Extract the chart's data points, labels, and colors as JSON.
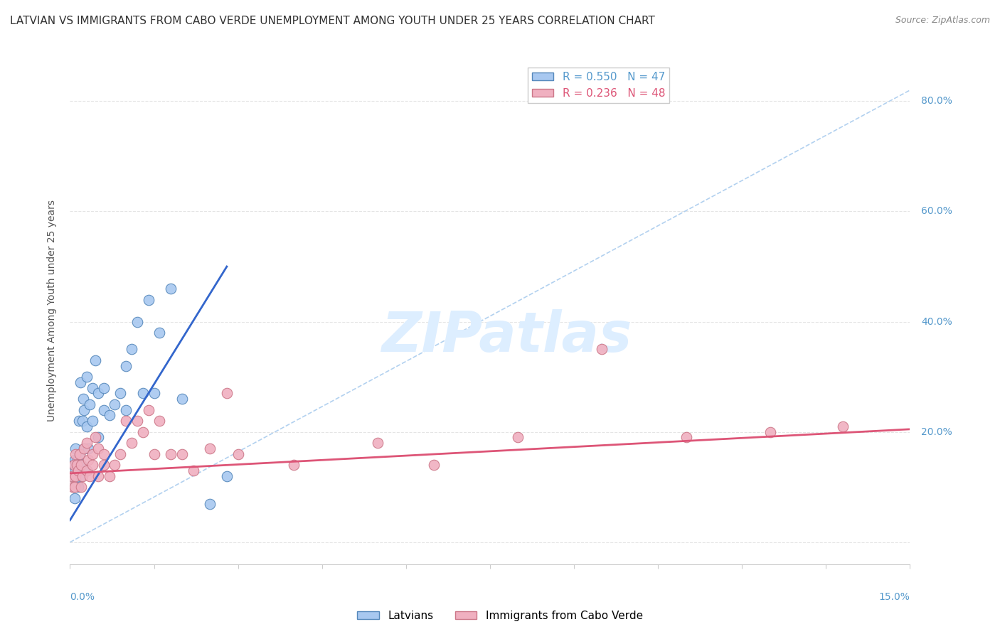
{
  "title": "LATVIAN VS IMMIGRANTS FROM CABO VERDE UNEMPLOYMENT AMONG YOUTH UNDER 25 YEARS CORRELATION CHART",
  "source": "Source: ZipAtlas.com",
  "ylabel": "Unemployment Among Youth under 25 years",
  "xmin": 0.0,
  "xmax": 0.15,
  "ymin": -0.04,
  "ymax": 0.88,
  "ytick_vals": [
    0.0,
    0.2,
    0.4,
    0.6,
    0.8
  ],
  "ytick_labels": [
    "",
    "20.0%",
    "40.0%",
    "60.0%",
    "80.0%"
  ],
  "latvians_x": [
    0.0005,
    0.0006,
    0.0007,
    0.0008,
    0.0008,
    0.001,
    0.001,
    0.0012,
    0.0013,
    0.0015,
    0.0015,
    0.0016,
    0.0017,
    0.0018,
    0.002,
    0.002,
    0.0022,
    0.0023,
    0.0025,
    0.0025,
    0.003,
    0.003,
    0.003,
    0.0032,
    0.0035,
    0.004,
    0.004,
    0.0045,
    0.005,
    0.005,
    0.006,
    0.006,
    0.007,
    0.008,
    0.009,
    0.01,
    0.01,
    0.011,
    0.012,
    0.013,
    0.014,
    0.015,
    0.016,
    0.018,
    0.02,
    0.025,
    0.028
  ],
  "latvians_y": [
    0.12,
    0.14,
    0.1,
    0.08,
    0.15,
    0.13,
    0.17,
    0.11,
    0.15,
    0.1,
    0.14,
    0.22,
    0.16,
    0.29,
    0.12,
    0.14,
    0.22,
    0.26,
    0.17,
    0.24,
    0.13,
    0.21,
    0.3,
    0.17,
    0.25,
    0.22,
    0.28,
    0.33,
    0.19,
    0.27,
    0.24,
    0.28,
    0.23,
    0.25,
    0.27,
    0.24,
    0.32,
    0.35,
    0.4,
    0.27,
    0.44,
    0.27,
    0.38,
    0.46,
    0.26,
    0.07,
    0.12
  ],
  "cabo_verde_x": [
    0.0003,
    0.0005,
    0.0007,
    0.0008,
    0.001,
    0.001,
    0.0012,
    0.0015,
    0.0017,
    0.002,
    0.002,
    0.0022,
    0.0025,
    0.003,
    0.003,
    0.0032,
    0.0035,
    0.004,
    0.004,
    0.0045,
    0.005,
    0.005,
    0.006,
    0.006,
    0.007,
    0.008,
    0.009,
    0.01,
    0.011,
    0.012,
    0.013,
    0.014,
    0.015,
    0.016,
    0.018,
    0.02,
    0.022,
    0.025,
    0.028,
    0.03,
    0.04,
    0.055,
    0.065,
    0.08,
    0.095,
    0.11,
    0.125,
    0.138
  ],
  "cabo_verde_y": [
    0.12,
    0.1,
    0.14,
    0.1,
    0.12,
    0.16,
    0.14,
    0.13,
    0.16,
    0.1,
    0.14,
    0.12,
    0.17,
    0.13,
    0.18,
    0.15,
    0.12,
    0.16,
    0.14,
    0.19,
    0.12,
    0.17,
    0.14,
    0.16,
    0.12,
    0.14,
    0.16,
    0.22,
    0.18,
    0.22,
    0.2,
    0.24,
    0.16,
    0.22,
    0.16,
    0.16,
    0.13,
    0.17,
    0.27,
    0.16,
    0.14,
    0.18,
    0.14,
    0.19,
    0.35,
    0.19,
    0.2,
    0.21
  ],
  "blue_line_x": [
    0.0,
    0.028
  ],
  "blue_line_y": [
    0.04,
    0.5
  ],
  "pink_line_x": [
    0.0,
    0.15
  ],
  "pink_line_y": [
    0.125,
    0.205
  ],
  "diag_line_x": [
    0.0,
    0.15
  ],
  "diag_line_y": [
    0.0,
    0.82
  ],
  "blue_color": "#a8c8f0",
  "pink_color": "#f0b0c0",
  "blue_edge": "#5588bb",
  "pink_edge": "#cc7788",
  "blue_line_color": "#3366cc",
  "pink_line_color": "#dd5577",
  "diag_color": "#aaccee",
  "background_color": "#ffffff",
  "grid_color": "#e5e5e5",
  "watermark_color": "#ddeeff",
  "title_fontsize": 11,
  "axis_label_fontsize": 10,
  "tick_fontsize": 10,
  "legend_fontsize": 11
}
